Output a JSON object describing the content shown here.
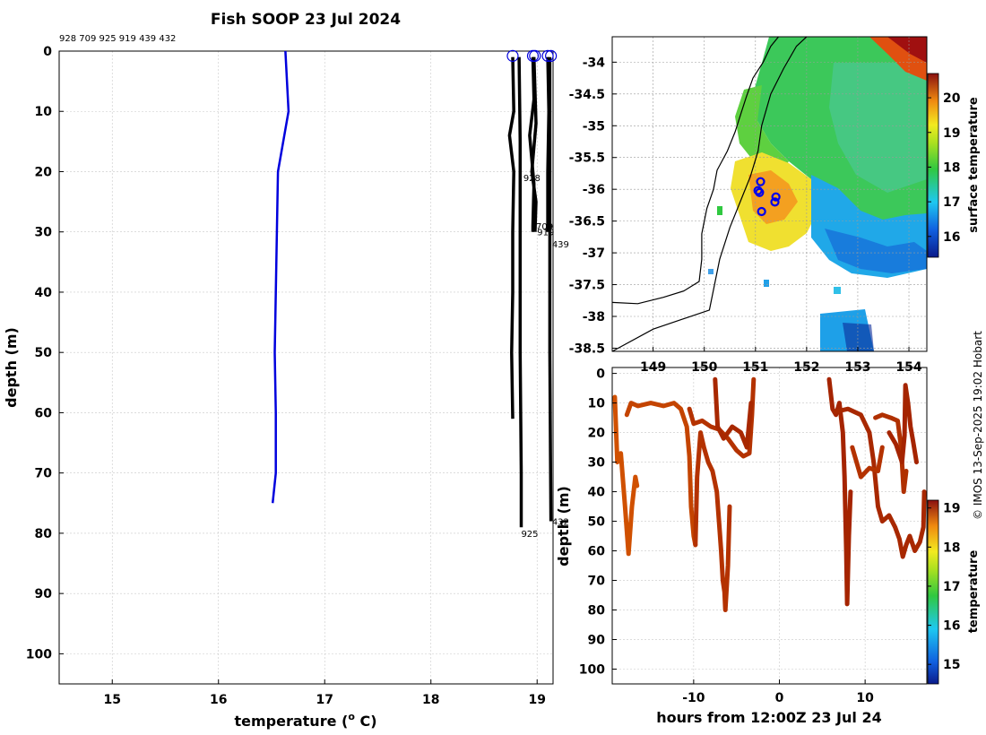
{
  "title": "Fish SOOP 23 Jul 2024",
  "watermark": "© IMOS 13-Sep-2025 19:02 Hobart",
  "chart_data": [
    {
      "type": "line",
      "name": "profiles",
      "header_ids": "928 709 925 919 439 432",
      "xlabel_prefix": "temperature (",
      "xlabel_sup": "o",
      "xlabel_suffix": " C)",
      "ylabel": "depth (m)",
      "xlim": [
        14.5,
        19.15
      ],
      "ylim": [
        0,
        105
      ],
      "xticks": [
        15,
        16,
        17,
        18,
        19
      ],
      "yticks": [
        0,
        10,
        20,
        30,
        40,
        50,
        60,
        70,
        80,
        90,
        100
      ],
      "series": [
        {
          "name": "reference",
          "color": "#0000dd",
          "points": [
            [
              16.63,
              0
            ],
            [
              16.66,
              10
            ],
            [
              16.56,
              20
            ],
            [
              16.55,
              30
            ],
            [
              16.54,
              40
            ],
            [
              16.53,
              50
            ],
            [
              16.54,
              60
            ],
            [
              16.54,
              70
            ],
            [
              16.51,
              75
            ]
          ]
        },
        {
          "name": "928",
          "color": "#000000",
          "points": [
            [
              18.77,
              1
            ],
            [
              18.78,
              10
            ],
            [
              18.74,
              14
            ],
            [
              18.78,
              20
            ],
            [
              18.77,
              30
            ],
            [
              18.77,
              40
            ],
            [
              18.76,
              50
            ],
            [
              18.77,
              61
            ]
          ]
        },
        {
          "name": "709",
          "color": "#000000",
          "points": [
            [
              18.96,
              1
            ],
            [
              18.97,
              8
            ],
            [
              18.93,
              14
            ],
            [
              18.97,
              22
            ],
            [
              18.96,
              29
            ],
            [
              18.96,
              30
            ]
          ]
        },
        {
          "name": "925",
          "color": "#000000",
          "points": [
            [
              18.83,
              1
            ],
            [
              18.84,
              15
            ],
            [
              18.84,
              30
            ],
            [
              18.84,
              50
            ],
            [
              18.85,
              70
            ],
            [
              18.85,
              79
            ]
          ]
        },
        {
          "name": "919",
          "color": "#000000",
          "points": [
            [
              18.97,
              1
            ],
            [
              18.99,
              12
            ],
            [
              18.95,
              20
            ],
            [
              18.99,
              25
            ],
            [
              18.98,
              30
            ]
          ]
        },
        {
          "name": "439",
          "color": "#000000",
          "points": [
            [
              19.1,
              1
            ],
            [
              19.11,
              10
            ],
            [
              19.1,
              20
            ],
            [
              19.1,
              30
            ]
          ]
        },
        {
          "name": "432",
          "color": "#000000",
          "points": [
            [
              19.12,
              1
            ],
            [
              19.12,
              20
            ],
            [
              19.12,
              50
            ],
            [
              19.13,
              78
            ]
          ]
        }
      ],
      "surface_markers": [
        18.77,
        18.96,
        18.98,
        19.1,
        19.13
      ],
      "profile_labels": [
        {
          "text": "928",
          "x": 18.87,
          "y": 21
        },
        {
          "text": "709",
          "x": 18.99,
          "y": 29
        },
        {
          "text": "919",
          "x": 19.0,
          "y": 30
        },
        {
          "text": "439",
          "x": 19.14,
          "y": 32
        },
        {
          "text": "925",
          "x": 18.85,
          "y": 80
        },
        {
          "text": "432",
          "x": 19.14,
          "y": 78
        }
      ]
    },
    {
      "type": "map",
      "name": "sst map",
      "xlim": [
        148.2,
        154.35
      ],
      "ylim": [
        -38.55,
        -33.6
      ],
      "xticks": [
        149,
        150,
        151,
        152,
        153,
        154
      ],
      "yticks": [
        -34,
        -34.5,
        -35,
        -35.5,
        -36,
        -36.5,
        -37,
        -37.5,
        -38,
        -38.5
      ],
      "colorbar_label": "surface temperature",
      "colorbar_ticks": [
        16,
        17,
        18,
        19,
        20
      ],
      "colorbar_range": [
        15.4,
        20.7
      ],
      "stations": [
        [
          151.1,
          -35.88
        ],
        [
          151.05,
          -36.02
        ],
        [
          151.08,
          -36.05
        ],
        [
          151.4,
          -36.12
        ],
        [
          151.38,
          -36.2
        ],
        [
          151.12,
          -36.35
        ]
      ],
      "coastline": [
        [
          148.2,
          -37.78
        ],
        [
          148.7,
          -37.8
        ],
        [
          149.2,
          -37.7
        ],
        [
          149.6,
          -37.6
        ],
        [
          149.9,
          -37.45
        ],
        [
          149.95,
          -37.1
        ],
        [
          149.95,
          -36.7
        ],
        [
          150.05,
          -36.3
        ],
        [
          150.18,
          -36.0
        ],
        [
          150.25,
          -35.7
        ],
        [
          150.45,
          -35.4
        ],
        [
          150.6,
          -35.1
        ],
        [
          150.72,
          -34.8
        ],
        [
          150.82,
          -34.55
        ],
        [
          150.95,
          -34.25
        ],
        [
          151.15,
          -34.0
        ],
        [
          151.3,
          -33.75
        ],
        [
          151.45,
          -33.6
        ]
      ],
      "shelf_edge": [
        [
          148.2,
          -38.55
        ],
        [
          149.0,
          -38.2
        ],
        [
          150.1,
          -37.9
        ],
        [
          150.3,
          -37.1
        ],
        [
          150.5,
          -36.6
        ],
        [
          150.7,
          -36.2
        ],
        [
          150.9,
          -35.8
        ],
        [
          151.05,
          -35.4
        ],
        [
          151.12,
          -35.0
        ],
        [
          151.3,
          -34.5
        ],
        [
          151.55,
          -34.1
        ],
        [
          151.8,
          -33.75
        ],
        [
          152.0,
          -33.6
        ]
      ]
    },
    {
      "type": "scatter",
      "name": "depth time",
      "xlabel": "hours from 12:00Z 23 Jul 24",
      "ylabel": "depth (m)",
      "xlim": [
        -19.5,
        17.2
      ],
      "ylim": [
        -2,
        105
      ],
      "xticks": [
        -10,
        0,
        10
      ],
      "yticks": [
        0,
        10,
        20,
        30,
        40,
        50,
        60,
        70,
        80,
        90,
        100
      ],
      "colorbar_label": "temperature",
      "colorbar_ticks": [
        15,
        16,
        17,
        18,
        19
      ],
      "colorbar_range": [
        14.5,
        19.2
      ],
      "tracks": [
        {
          "color": "#d05000",
          "points": [
            [
              -19.2,
              8
            ],
            [
              -18.9,
              30
            ],
            [
              -18.5,
              27
            ],
            [
              -18.0,
              45
            ],
            [
              -17.6,
              61
            ],
            [
              -17.2,
              45
            ],
            [
              -16.8,
              35
            ],
            [
              -16.6,
              38
            ]
          ]
        },
        {
          "color": "#c44400",
          "points": [
            [
              -17.8,
              14
            ],
            [
              -17.3,
              10
            ],
            [
              -16.5,
              11
            ],
            [
              -15.0,
              10
            ],
            [
              -13.5,
              11
            ],
            [
              -12.3,
              10
            ],
            [
              -11.5,
              12
            ],
            [
              -10.8,
              18
            ],
            [
              -10.5,
              28
            ],
            [
              -10.3,
              45
            ],
            [
              -10.0,
              55
            ],
            [
              -9.8,
              58
            ]
          ]
        },
        {
          "color": "#b43200",
          "points": [
            [
              -9.8,
              58
            ],
            [
              -9.6,
              35
            ],
            [
              -9.2,
              20
            ],
            [
              -8.8,
              25
            ],
            [
              -8.3,
              30
            ],
            [
              -7.8,
              33
            ],
            [
              -7.3,
              40
            ],
            [
              -7.0,
              52
            ],
            [
              -6.8,
              60
            ],
            [
              -6.6,
              70
            ],
            [
              -6.4,
              74
            ],
            [
              -6.3,
              80
            ],
            [
              -6.0,
              65
            ],
            [
              -5.8,
              45
            ]
          ]
        },
        {
          "color": "#b43200",
          "points": [
            [
              -10.5,
              12
            ],
            [
              -10.0,
              17
            ],
            [
              -9.0,
              16
            ],
            [
              -8.0,
              18
            ],
            [
              -7.0,
              19
            ],
            [
              -6.0,
              22
            ],
            [
              -5.0,
              26
            ],
            [
              -4.2,
              28
            ],
            [
              -3.5,
              27
            ],
            [
              -3.2,
              14
            ],
            [
              -3.0,
              2
            ]
          ]
        },
        {
          "color": "#a82800",
          "points": [
            [
              -7.5,
              2
            ],
            [
              -7.2,
              18
            ],
            [
              -6.5,
              22
            ],
            [
              -5.5,
              18
            ],
            [
              -4.5,
              20
            ],
            [
              -3.8,
              25
            ],
            [
              -3.3,
              10
            ]
          ]
        },
        {
          "color": "#a52400",
          "points": [
            [
              5.8,
              2
            ],
            [
              6.2,
              12
            ],
            [
              6.6,
              14
            ],
            [
              7.0,
              10
            ],
            [
              7.4,
              20
            ],
            [
              7.6,
              35
            ],
            [
              7.8,
              60
            ],
            [
              7.9,
              78
            ],
            [
              8.1,
              55
            ],
            [
              8.3,
              40
            ]
          ]
        },
        {
          "color": "#a82800",
          "points": [
            [
              6.5,
              13
            ],
            [
              8.0,
              12
            ],
            [
              9.5,
              14
            ],
            [
              10.5,
              20
            ],
            [
              11.0,
              30
            ],
            [
              11.5,
              45
            ],
            [
              12.0,
              50
            ],
            [
              12.8,
              48
            ],
            [
              13.5,
              52
            ],
            [
              14.0,
              56
            ],
            [
              14.4,
              62
            ],
            [
              14.8,
              58
            ],
            [
              15.2,
              55
            ],
            [
              15.8,
              60
            ],
            [
              16.4,
              57
            ],
            [
              16.8,
              52
            ],
            [
              16.9,
              40
            ]
          ]
        },
        {
          "color": "#b03000",
          "points": [
            [
              11.2,
              15
            ],
            [
              12.0,
              14
            ],
            [
              13.0,
              15
            ],
            [
              13.8,
              16
            ],
            [
              14.2,
              25
            ],
            [
              14.5,
              40
            ],
            [
              14.8,
              33
            ]
          ]
        },
        {
          "color": "#a52400",
          "points": [
            [
              12.8,
              20
            ],
            [
              13.6,
              24
            ],
            [
              14.3,
              30
            ],
            [
              14.6,
              21
            ],
            [
              14.7,
              4
            ],
            [
              15.0,
              10
            ],
            [
              15.3,
              18
            ],
            [
              15.6,
              23
            ],
            [
              16.0,
              30
            ]
          ]
        },
        {
          "color": "#b43200",
          "points": [
            [
              8.5,
              25
            ],
            [
              9.5,
              35
            ],
            [
              10.5,
              32
            ],
            [
              11.5,
              33
            ],
            [
              12.0,
              25
            ]
          ]
        }
      ]
    }
  ]
}
